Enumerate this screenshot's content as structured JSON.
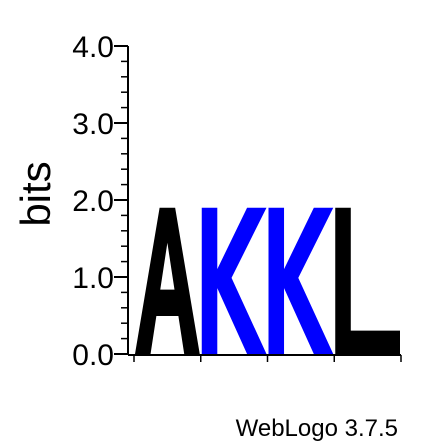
{
  "chart_data": {
    "type": "sequence-logo",
    "ylabel": "bits",
    "ylim": [
      0,
      4.0
    ],
    "yticks": [
      "0.0",
      "1.0",
      "2.0",
      "3.0",
      "4.0"
    ],
    "positions": [
      {
        "letter": "A",
        "height": 1.9,
        "color": "#000000"
      },
      {
        "letter": "K",
        "height": 1.9,
        "color": "#0000ff"
      },
      {
        "letter": "K",
        "height": 1.9,
        "color": "#0000ff"
      },
      {
        "letter": "L",
        "height": 1.9,
        "color": "#000000"
      }
    ],
    "footer": "WebLogo 3.7.5"
  }
}
